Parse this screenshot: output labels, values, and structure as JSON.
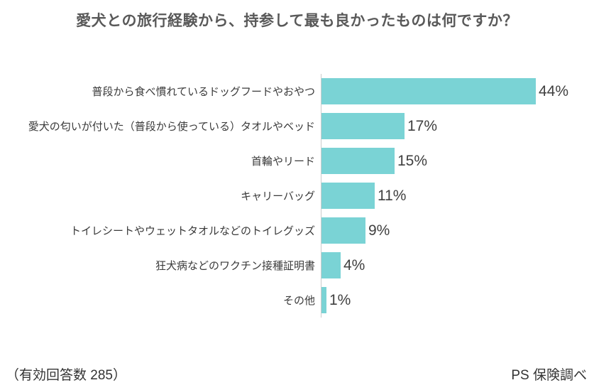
{
  "title": "愛犬との旅行経験から、持参して最も良かったものは何ですか？",
  "footer": {
    "left": "（有効回答数 285）",
    "right": "PS 保険調べ"
  },
  "colors": {
    "bar": "#7AD3D5",
    "title_text": "#595959",
    "label_text": "#3a3a3a",
    "value_text": "#404040",
    "axis_line": "#cccccc"
  },
  "chart_data": {
    "type": "bar",
    "orientation": "horizontal",
    "title": "愛犬との旅行経験から、持参して最も良かったものは何ですか？",
    "categories": [
      "普段から食べ慣れているドッグフードやおやつ",
      "愛犬の匂いが付いた（普段から使っている）タオルやベッド",
      "首輪やリード",
      "キャリーバッグ",
      "トイレシートやウェットタオルなどのトイレグッズ",
      "狂犬病などのワクチン接種証明書",
      "その他"
    ],
    "values": [
      44,
      17,
      15,
      11,
      9,
      4,
      1
    ],
    "value_suffix": "%",
    "xlabel": "",
    "ylabel": "",
    "xlim": [
      0,
      45
    ],
    "grid": false,
    "legend": false,
    "annotations": "値は各バーの右側に表示"
  }
}
